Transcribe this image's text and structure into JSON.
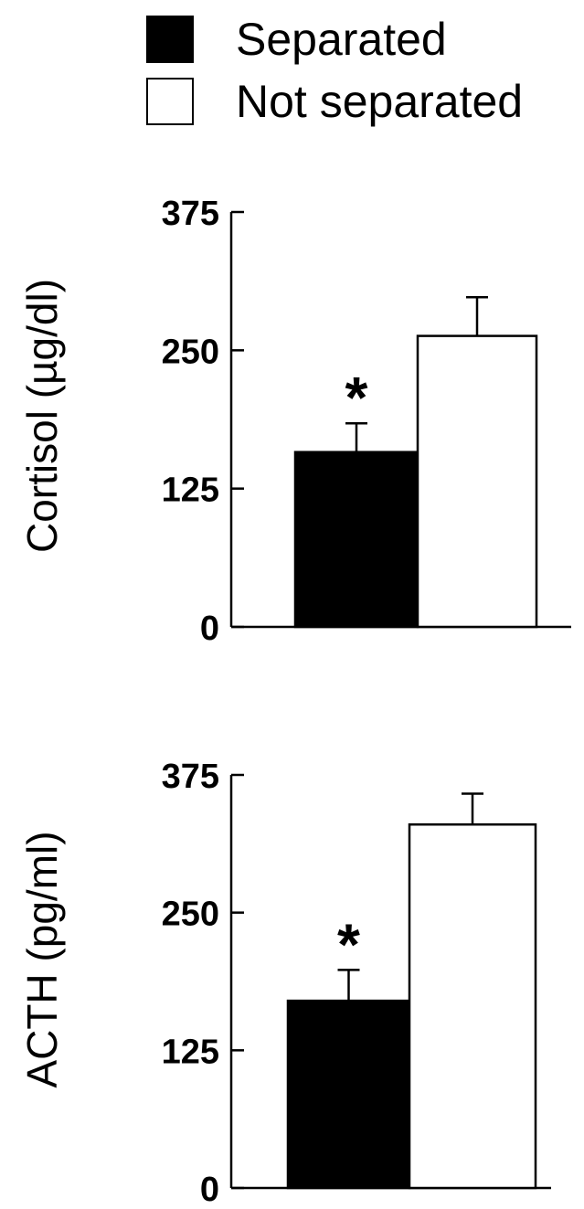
{
  "legend": [
    {
      "label": "Separated",
      "color": "#000000"
    },
    {
      "label": "Not separated",
      "color": "#ffffff"
    }
  ],
  "chart_data": [
    {
      "type": "bar",
      "categories": [
        "Separated",
        "Not separated"
      ],
      "values": [
        158,
        263
      ],
      "errors": [
        26,
        35
      ],
      "ylabel": "Cortisol (µg/dl)",
      "ylim": [
        0,
        375
      ],
      "yticks": [
        "0",
        "125",
        "250",
        "375"
      ],
      "significance": [
        "*",
        ""
      ],
      "colors": [
        "#000000",
        "#ffffff"
      ]
    },
    {
      "type": "bar",
      "categories": [
        "Separated",
        "Not separated"
      ],
      "values": [
        170,
        330
      ],
      "errors": [
        28,
        28
      ],
      "ylabel": "ACTH (pg/ml)",
      "ylim": [
        0,
        375
      ],
      "yticks": [
        "0",
        "125",
        "250",
        "375"
      ],
      "significance": [
        "*",
        ""
      ],
      "colors": [
        "#000000",
        "#ffffff"
      ]
    }
  ]
}
